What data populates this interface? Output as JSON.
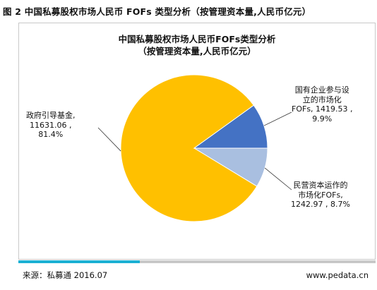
{
  "figure_caption": "图 2 中国私募股权市场人民币 FOFs 类型分析（按管理资本量,人民币亿元）",
  "footer": {
    "source": "来源：私募通 2016.07",
    "url": "www.pedata.cn"
  },
  "colors": {
    "slice_government": "#ffc000",
    "slice_soe": "#4472c4",
    "slice_private": "#a9bfe0",
    "accent_bar": "#1bb0d3"
  },
  "chart_data": {
    "type": "pie",
    "title": "中国私募股权市场人民币FOFs类型分析",
    "subtitle": "（按管理资本量,人民币亿元）",
    "slices": [
      {
        "label_lines": [
          "政府引导基金,",
          "11631.06 ,",
          "81.4%"
        ],
        "value": 11631.06,
        "percent": 81.4
      },
      {
        "label_lines": [
          "国有企业参与设",
          "立的市场化",
          "FOFs, 1419.53 ,",
          "9.9%"
        ],
        "value": 1419.53,
        "percent": 9.9
      },
      {
        "label_lines": [
          "民营资本运作的",
          "市场化FOFs,",
          "1242.97 , 8.7%"
        ],
        "value": 1242.97,
        "percent": 8.7
      }
    ]
  }
}
